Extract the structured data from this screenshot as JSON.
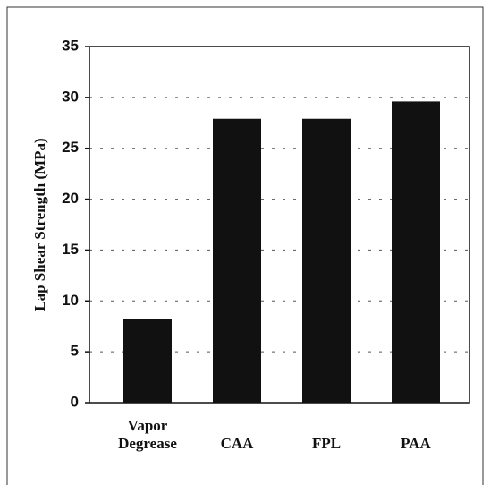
{
  "chart_data": {
    "type": "bar",
    "y_label": "Lap Shear Strength (MPa)",
    "categories": [
      "Vapor Degrease",
      "CAA",
      "FPL",
      "PAA"
    ],
    "values": [
      8.2,
      27.9,
      27.9,
      29.6
    ],
    "color": "#111111",
    "ylim": [
      0,
      35
    ],
    "yticks": [
      0,
      5,
      10,
      15,
      20,
      25,
      30,
      35
    ],
    "grid": true
  }
}
